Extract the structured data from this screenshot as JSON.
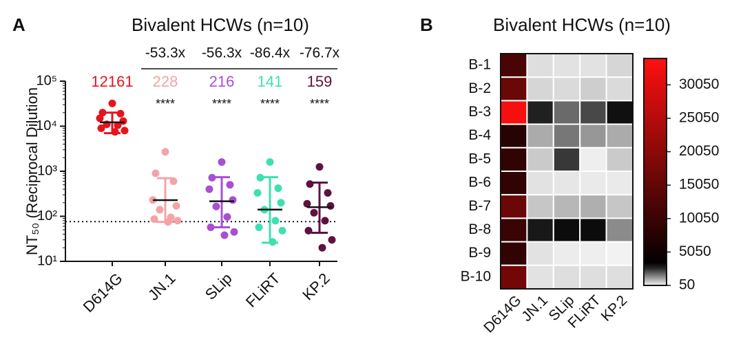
{
  "chart_data": [
    {
      "type": "scatter",
      "panel": "A",
      "title": "Bivalent HCWs (n=10)",
      "y_label": "NT₅₀ (Reciprocal Dilution",
      "categories": [
        "D614G",
        "JN.1",
        "SLip",
        "FLiRT",
        "KP.2"
      ],
      "colors": [
        "#e8141b",
        "#f4a3a8",
        "#a94fd1",
        "#3ee0b0",
        "#5e1240"
      ],
      "points": [
        [
          32000,
          20000,
          19000,
          15000,
          13000,
          11000,
          10500,
          9000,
          8000,
          7500
        ],
        [
          2700,
          900,
          600,
          230,
          170,
          140,
          95,
          87,
          80,
          75
        ],
        [
          1600,
          720,
          500,
          400,
          230,
          165,
          97,
          57,
          45,
          38
        ],
        [
          1600,
          720,
          420,
          330,
          200,
          140,
          80,
          57,
          48,
          27
        ],
        [
          1250,
          520,
          330,
          190,
          170,
          120,
          80,
          48,
          30,
          20
        ]
      ],
      "means": [
        12161,
        228,
        216,
        141,
        159
      ],
      "error_upper": [
        20000,
        700,
        740,
        740,
        560
      ],
      "error_lower": [
        7000,
        75,
        57,
        26,
        43
      ],
      "fold_changes": [
        null,
        "-53.3x",
        "-56.3x",
        "-86.4x",
        "-76.7x"
      ],
      "significance": [
        null,
        "****",
        "****",
        "****",
        "****"
      ],
      "dotted_line": 76,
      "log_y": true,
      "ylim": [
        10,
        100000
      ],
      "yticks": [
        {
          "value": 10,
          "label": "10¹"
        },
        {
          "value": 100,
          "label": "10²"
        },
        {
          "value": 1000,
          "label": "10³"
        },
        {
          "value": 10000,
          "label": "10⁴"
        },
        {
          "value": 100000,
          "label": "10⁵"
        }
      ]
    },
    {
      "type": "heatmap",
      "panel": "B",
      "title": "Bivalent HCWs (n=10)",
      "rows": [
        "B-1",
        "B-2",
        "B-3",
        "B-4",
        "B-5",
        "B-6",
        "B-7",
        "B-8",
        "B-9",
        "B-10"
      ],
      "columns": [
        "D614G",
        "JN.1",
        "SLip",
        "FLiRT",
        "KP.2"
      ],
      "values": [
        [
          12000,
          300,
          250,
          250,
          400
        ],
        [
          16000,
          400,
          350,
          500,
          350
        ],
        [
          33000,
          2700,
          1770,
          2200,
          2900
        ],
        [
          8000,
          950,
          1600,
          1200,
          950
        ],
        [
          9000,
          550,
          2400,
          100,
          550
        ],
        [
          9000,
          250,
          200,
          150,
          150
        ],
        [
          16000,
          600,
          800,
          900,
          600
        ],
        [
          10000,
          2800,
          2950,
          2950,
          1350
        ],
        [
          9000,
          250,
          120,
          100,
          50
        ],
        [
          17000,
          250,
          300,
          300,
          300
        ]
      ],
      "colors": [
        "#f2f2f2",
        "#000000",
        "#ff1010"
      ],
      "zlim": [
        50,
        34000
      ],
      "zticks": [
        50,
        5050,
        10050,
        15050,
        20050,
        25050,
        30050
      ]
    }
  ]
}
